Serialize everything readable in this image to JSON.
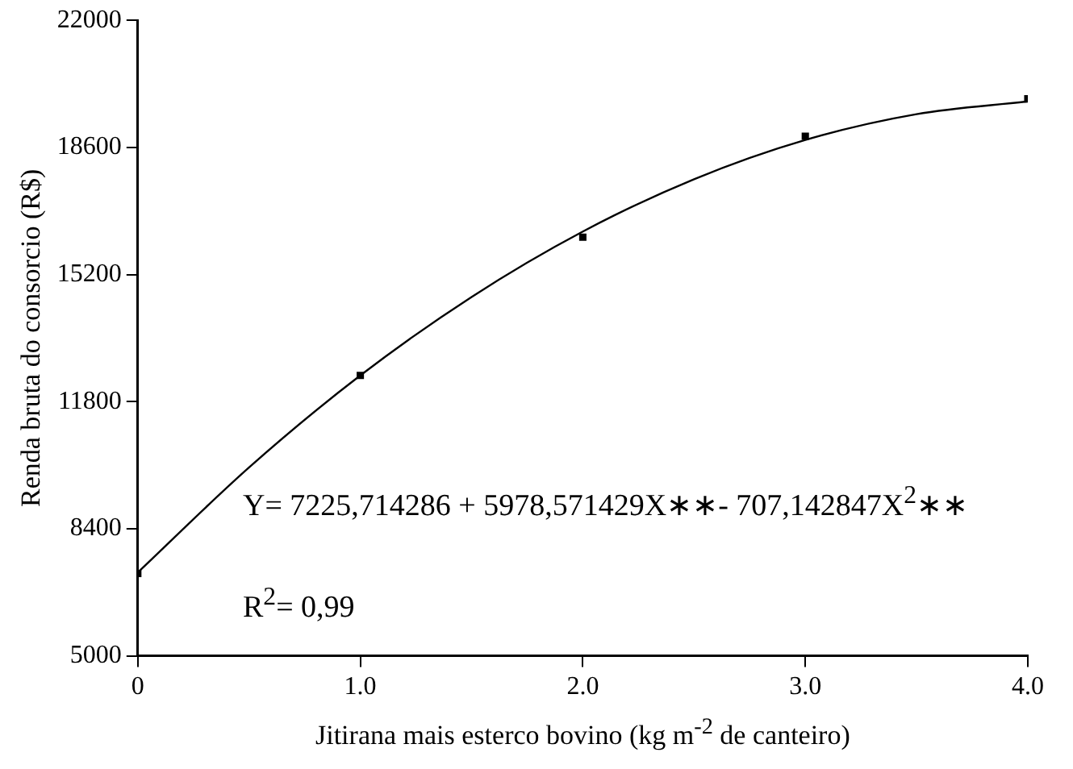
{
  "chart_data": {
    "type": "scatter",
    "xlabel": "Jitirana mais esterco bovino (kg m$^{-2}$ de canteiro)",
    "ylabel": "Renda bruta do consorcio (R$)",
    "series": [
      {
        "color": "#000000",
        "x": [
          0,
          1,
          2,
          3,
          4
        ],
        "values": [
          7200,
          12500,
          16200,
          18900,
          19900
        ],
        "marker": "square"
      },
      {
        "type": "line",
        "color": "#000000",
        "x": [
          0,
          0.5,
          1,
          1.5,
          2,
          2.5,
          3,
          3.5,
          4
        ],
        "values": [
          7230,
          10040,
          12500,
          14600,
          16350,
          17750,
          18800,
          19490,
          19830
        ],
        "marker": "none",
        "line_style": "solid"
      }
    ],
    "xlim": [
      0,
      4
    ],
    "xticks": [
      0,
      {
        "value": 1,
        "label": "1.0"
      },
      {
        "value": 2,
        "label": "2.0"
      },
      {
        "value": 3,
        "label": "3.0"
      },
      {
        "value": 4,
        "label": "4.0"
      }
    ],
    "ylim": [
      5000,
      22000
    ],
    "yticks": [
      5000,
      8400,
      11800,
      15200,
      18600,
      22000
    ],
    "grid": false,
    "legend": false,
    "annotations": [
      "Y= 7225,714286 + 5978,571429X∗∗- 707,142847X$^{2}$∗∗",
      "R$^{2}$= 0,99"
    ]
  }
}
